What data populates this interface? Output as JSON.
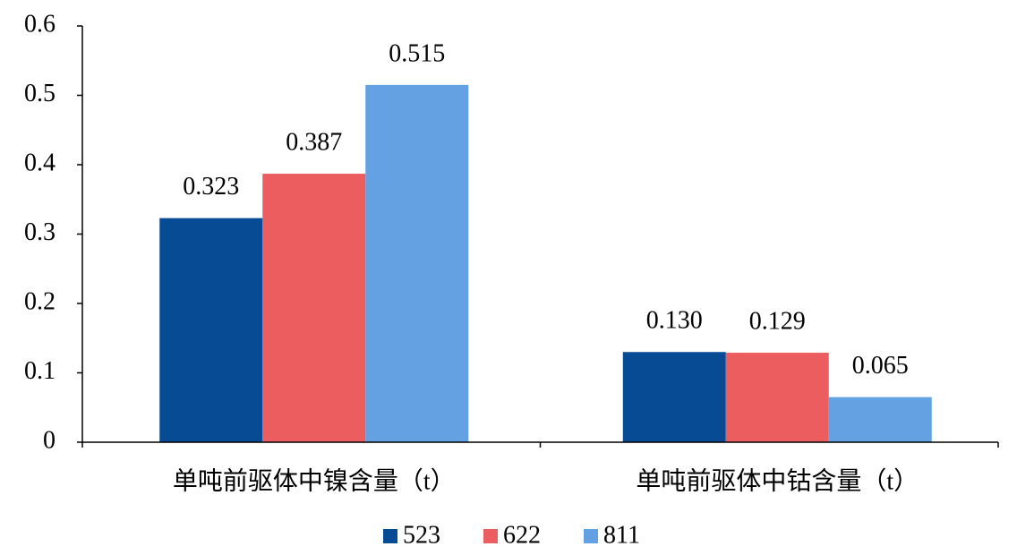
{
  "chart_data": {
    "type": "bar",
    "categories": [
      "单吨前驱体中镍含量（t）",
      "单吨前驱体中钴含量（t）"
    ],
    "series": [
      {
        "name": "523",
        "color": "#074b95",
        "values": [
          0.323,
          0.13
        ],
        "value_labels": [
          "0.323",
          "0.130"
        ]
      },
      {
        "name": "622",
        "color": "#eb5d5f",
        "values": [
          0.387,
          0.129
        ],
        "value_labels": [
          "0.387",
          "0.129"
        ]
      },
      {
        "name": "811",
        "color": "#63a1e2",
        "values": [
          0.515,
          0.065
        ],
        "value_labels": [
          "0.515",
          "0.065"
        ]
      }
    ],
    "ylim": [
      0,
      0.6
    ],
    "yticks": [
      0,
      0.1,
      0.2,
      0.3,
      0.4,
      0.5,
      0.6
    ],
    "grid": false,
    "legend": "bottom"
  }
}
